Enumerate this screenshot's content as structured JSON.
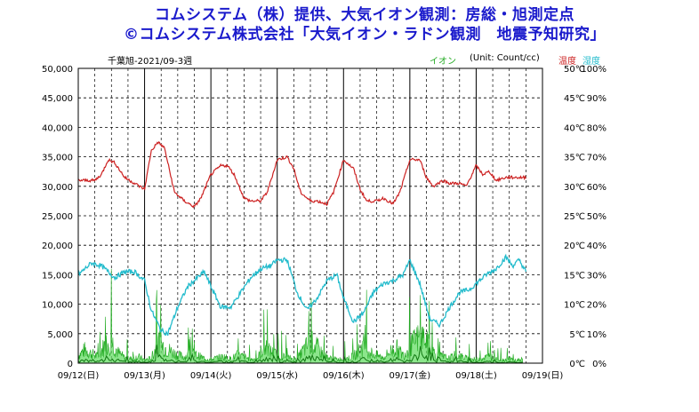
{
  "header": {
    "line1": "コムシステム（株）提供、大気イオン観測：房総・旭測定点",
    "line2": "©コムシステム株式会社「大気イオン・ラドン観測　地震予知研究」"
  },
  "chart_meta": {
    "station_label": "千葉旭-2021/09-3週",
    "ion_label": "イオン",
    "unit_label": "(Unit: Count/cc)",
    "temp_label": "温度",
    "humid_label": "湿度",
    "colors": {
      "ion": "#22aa22",
      "temp": "#cc2222",
      "humid": "#22bbcc",
      "title": "#1a1acc"
    }
  },
  "chart_data": {
    "type": "line",
    "y_left": {
      "label": "",
      "range": [
        0,
        50000
      ],
      "ticks": [
        "0",
        "5,000",
        "10,000",
        "15,000",
        "20,000",
        "25,000",
        "30,000",
        "35,000",
        "40,000",
        "45,000",
        "50,000"
      ]
    },
    "y_right_temp": {
      "range": [
        0,
        50
      ],
      "ticks": [
        "0℃",
        "5℃",
        "10℃",
        "15℃",
        "20℃",
        "25℃",
        "30℃",
        "35℃",
        "40℃",
        "45℃",
        "50℃"
      ]
    },
    "y_right_humid": {
      "range": [
        0,
        100
      ],
      "ticks": [
        "0%",
        "10%",
        "20%",
        "30%",
        "40%",
        "50%",
        "60%",
        "70%",
        "80%",
        "90%",
        "100%"
      ]
    },
    "x_ticks": [
      "09/12(日)",
      "09/13(月)",
      "09/14(火)",
      "09/15(水)",
      "09/16(木)",
      "09/17(金)",
      "09/18(土)",
      "09/19(日)"
    ],
    "grid": true,
    "series": [
      {
        "name": "温度",
        "axis": "temp_c",
        "x_days": [
          0,
          0.25,
          0.35,
          0.45,
          0.55,
          0.7,
          0.85,
          1.0,
          1.1,
          1.2,
          1.3,
          1.45,
          1.6,
          1.75,
          1.85,
          2.0,
          2.15,
          2.25,
          2.35,
          2.5,
          2.6,
          2.75,
          2.85,
          3.0,
          3.15,
          3.25,
          3.35,
          3.5,
          3.6,
          3.75,
          3.85,
          4.0,
          4.15,
          4.25,
          4.35,
          4.5,
          4.6,
          4.75,
          4.85,
          5.0,
          5.15,
          5.25,
          5.35,
          5.5,
          5.6,
          5.75,
          5.85,
          6.0,
          6.1,
          6.2,
          6.3,
          6.45,
          6.55,
          6.65,
          6.75
        ],
        "values": [
          31,
          31,
          32,
          34.5,
          34,
          31.5,
          30.5,
          29.5,
          36,
          37.5,
          36.5,
          29,
          27.5,
          26.5,
          28,
          32,
          33.5,
          33.5,
          32,
          28,
          27.5,
          27.5,
          29,
          34.5,
          35,
          33,
          29,
          27.5,
          27.5,
          27,
          29,
          34.5,
          33,
          29.5,
          27.5,
          27.5,
          28,
          27,
          29,
          34.5,
          34.5,
          31.5,
          30,
          31,
          30.5,
          30.5,
          30,
          33.5,
          32,
          32.5,
          31,
          31.5,
          31.5,
          31.5,
          31.5
        ]
      },
      {
        "name": "湿度",
        "axis": "humid_pct",
        "x_days": [
          0,
          0.2,
          0.35,
          0.45,
          0.55,
          0.7,
          0.85,
          1.0,
          1.1,
          1.25,
          1.35,
          1.5,
          1.65,
          1.8,
          1.9,
          2.0,
          2.15,
          2.3,
          2.45,
          2.6,
          2.75,
          2.9,
          3.0,
          3.15,
          3.3,
          3.45,
          3.6,
          3.75,
          3.9,
          4.0,
          4.15,
          4.3,
          4.45,
          4.6,
          4.75,
          4.9,
          5.0,
          5.15,
          5.3,
          5.45,
          5.6,
          5.75,
          5.9,
          6.0,
          6.15,
          6.3,
          6.45,
          6.55,
          6.65,
          6.75
        ],
        "values": [
          30,
          34,
          33,
          31,
          29,
          31,
          31,
          28,
          18,
          11,
          10,
          19,
          26,
          29,
          31,
          26,
          19,
          19,
          24,
          29,
          32,
          33,
          35,
          35,
          24,
          18,
          22,
          28,
          30,
          22,
          14,
          17,
          24,
          27,
          28,
          30,
          35,
          27,
          15,
          13,
          19,
          24,
          25,
          27,
          30,
          32,
          36,
          33,
          35,
          31
        ]
      },
      {
        "name": "イオン",
        "axis": "count_cc",
        "x_days": [
          0,
          0.1,
          0.2,
          0.3,
          0.4,
          0.5,
          0.6,
          0.7,
          0.8,
          0.9,
          1.0,
          1.1,
          1.2,
          1.3,
          1.4,
          1.5,
          1.6,
          1.7,
          1.8,
          1.9,
          2.0,
          2.1,
          2.2,
          2.3,
          2.4,
          2.5,
          2.6,
          2.7,
          2.8,
          2.9,
          3.0,
          3.1,
          3.2,
          3.3,
          3.4,
          3.5,
          3.6,
          3.7,
          3.8,
          3.9,
          4.0,
          4.1,
          4.2,
          4.3,
          4.4,
          4.5,
          4.6,
          4.7,
          4.8,
          4.9,
          5.0,
          5.1,
          5.2,
          5.3,
          5.4,
          5.5,
          5.6,
          5.7,
          5.8,
          5.9,
          6.0,
          6.1,
          6.2,
          6.3,
          6.4,
          6.5,
          6.6,
          6.7
        ],
        "values": [
          1500,
          2500,
          1800,
          1200,
          3500,
          4200,
          2000,
          1000,
          800,
          1200,
          600,
          900,
          4000,
          3000,
          2200,
          1500,
          1200,
          1800,
          1400,
          900,
          700,
          1000,
          1200,
          800,
          1500,
          1200,
          700,
          900,
          3000,
          2200,
          1500,
          1200,
          900,
          800,
          2500,
          4000,
          3000,
          1500,
          900,
          700,
          800,
          1000,
          1800,
          3500,
          2000,
          1500,
          1000,
          2200,
          2800,
          1500,
          3000,
          4500,
          5000,
          3000,
          1500,
          1200,
          900,
          1600,
          1100,
          800,
          700,
          1000,
          1200,
          900,
          600,
          800,
          500,
          700
        ]
      }
    ]
  }
}
